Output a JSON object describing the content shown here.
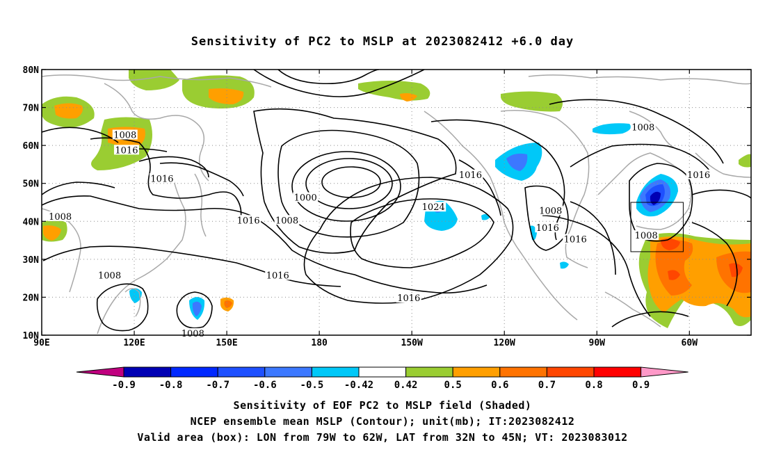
{
  "title": "Sensitivity of PC2 to MSLP at 2023082412 +6.0 day",
  "map": {
    "lon_labels": [
      "90E",
      "120E",
      "150E",
      "180",
      "150W",
      "120W",
      "90W",
      "60W"
    ],
    "lat_labels": [
      "80N",
      "70N",
      "60N",
      "50N",
      "40N",
      "30N",
      "20N",
      "10N"
    ],
    "contour_labels": [
      {
        "text": "1008",
        "lon": 117,
        "lat": 62.5
      },
      {
        "text": "1016",
        "lon": 117.5,
        "lat": 58.5
      },
      {
        "text": "1016",
        "lon": 129,
        "lat": 51
      },
      {
        "text": "1008",
        "lon": 96,
        "lat": 41
      },
      {
        "text": "1016",
        "lon": 157,
        "lat": 40
      },
      {
        "text": "1000",
        "lon": 175.5,
        "lat": 46
      },
      {
        "text": "1008",
        "lon": 169.5,
        "lat": 40
      },
      {
        "text": "1008",
        "lon": 112,
        "lat": 25.5
      },
      {
        "text": "1016",
        "lon": 166.5,
        "lat": 25.5
      },
      {
        "text": "1008",
        "lon": 139,
        "lat": 10.2
      },
      {
        "text": "1024",
        "lon": -143,
        "lat": 43.5
      },
      {
        "text": "1016",
        "lon": -131,
        "lat": 52
      },
      {
        "text": "1016",
        "lon": -151,
        "lat": 19.5
      },
      {
        "text": "1008",
        "lon": -105,
        "lat": 42.5
      },
      {
        "text": "1016",
        "lon": -106,
        "lat": 38
      },
      {
        "text": "1016",
        "lon": -97,
        "lat": 35
      },
      {
        "text": "1008",
        "lon": -75,
        "lat": 64.5
      },
      {
        "text": "1016",
        "lon": -57,
        "lat": 52
      },
      {
        "text": "1008",
        "lon": -74,
        "lat": 36
      }
    ],
    "valid_box": {
      "lon_min": -79,
      "lon_max": -62,
      "lat_min": 32,
      "lat_max": 45
    }
  },
  "colorbar": {
    "labels": [
      "-0.9",
      "-0.8",
      "-0.7",
      "-0.6",
      "-0.5",
      "-0.42",
      "0.42",
      "0.5",
      "0.6",
      "0.7",
      "0.8",
      "0.9"
    ],
    "colors": {
      "below": "#c0007f",
      "bins": [
        "#0000b4",
        "#0028ff",
        "#1e50ff",
        "#3c78ff",
        "#00c8f8",
        "#ffffff",
        "#9acd32",
        "#ff9f00",
        "#ff7300",
        "#ff4600",
        "#ff0000"
      ],
      "above": "#ff99c8"
    }
  },
  "caption": {
    "line1": "Sensitivity of EOF PC2 to MSLP field (Shaded)",
    "line2": "NCEP ensemble mean MSLP (Contour); unit(mb); IT:2023082412",
    "line3": "Valid area (box): LON from 79W to 62W, LAT from 32N to 45N; VT: 2023083012"
  }
}
